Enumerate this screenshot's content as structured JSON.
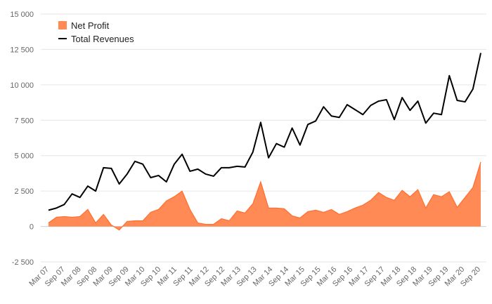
{
  "chart_data": {
    "type": "area",
    "legend_position": "top-left",
    "grid": true,
    "y_range": [
      -2500,
      15000
    ],
    "y_ticks": [
      -2500,
      0,
      2500,
      5000,
      7500,
      10000,
      12500,
      15000
    ],
    "y_tick_labels": [
      "-2 500",
      "0",
      "2 500",
      "5 000",
      "7 500",
      "10 000",
      "12 500",
      "15 000"
    ],
    "x_tick_labels": [
      "Mar 07",
      "Sep 07",
      "Mar 08",
      "Sep 08",
      "Mar 09",
      "Sep 09",
      "Mar 10",
      "Sep 10",
      "Mar 11",
      "Sep 11",
      "Mar 12",
      "Sep 12",
      "Mar 13",
      "Sep 13",
      "Mar 14",
      "Sep 14",
      "Mar 15",
      "Sep 15",
      "Mar 16",
      "Sep 16",
      "Mar 17",
      "Sep 17",
      "Mar 18",
      "Sep 18",
      "Mar 19",
      "Sep 19",
      "Mar 20",
      "Sep 20"
    ],
    "colors": {
      "net_profit_fill": "#ff8a55",
      "net_profit_line": "#ff6e2e",
      "revenues_line": "#000000",
      "grid": "#e6e6e6",
      "zero_line": "#cfcfcf"
    },
    "series": [
      {
        "name": "Net Profit",
        "kind": "area",
        "values": [
          250,
          650,
          700,
          650,
          700,
          1200,
          250,
          850,
          100,
          -250,
          350,
          400,
          400,
          1000,
          1200,
          1800,
          2100,
          2500,
          1200,
          250,
          150,
          150,
          550,
          400,
          1100,
          950,
          1600,
          3150,
          1300,
          1300,
          1250,
          750,
          600,
          1050,
          1150,
          1000,
          1200,
          850,
          1050,
          1300,
          1500,
          1850,
          2400,
          2050,
          1850,
          2550,
          2100,
          2600,
          1300,
          2250,
          2100,
          2450,
          1350,
          2050,
          2750,
          4550
        ]
      },
      {
        "name": "Total Revenues",
        "kind": "line",
        "values": [
          1150,
          1300,
          1550,
          2300,
          2050,
          2850,
          2500,
          4150,
          4100,
          3000,
          3700,
          4600,
          4400,
          3450,
          3600,
          3150,
          4400,
          5100,
          3900,
          4050,
          3700,
          3550,
          4150,
          4150,
          4250,
          4200,
          5250,
          7350,
          4850,
          5850,
          5600,
          6950,
          5750,
          7200,
          7450,
          8450,
          7800,
          7700,
          8600,
          8250,
          7900,
          8550,
          8850,
          8950,
          7550,
          9100,
          8200,
          8850,
          7300,
          8000,
          7900,
          10650,
          8900,
          8800,
          9700,
          12250
        ]
      }
    ]
  }
}
